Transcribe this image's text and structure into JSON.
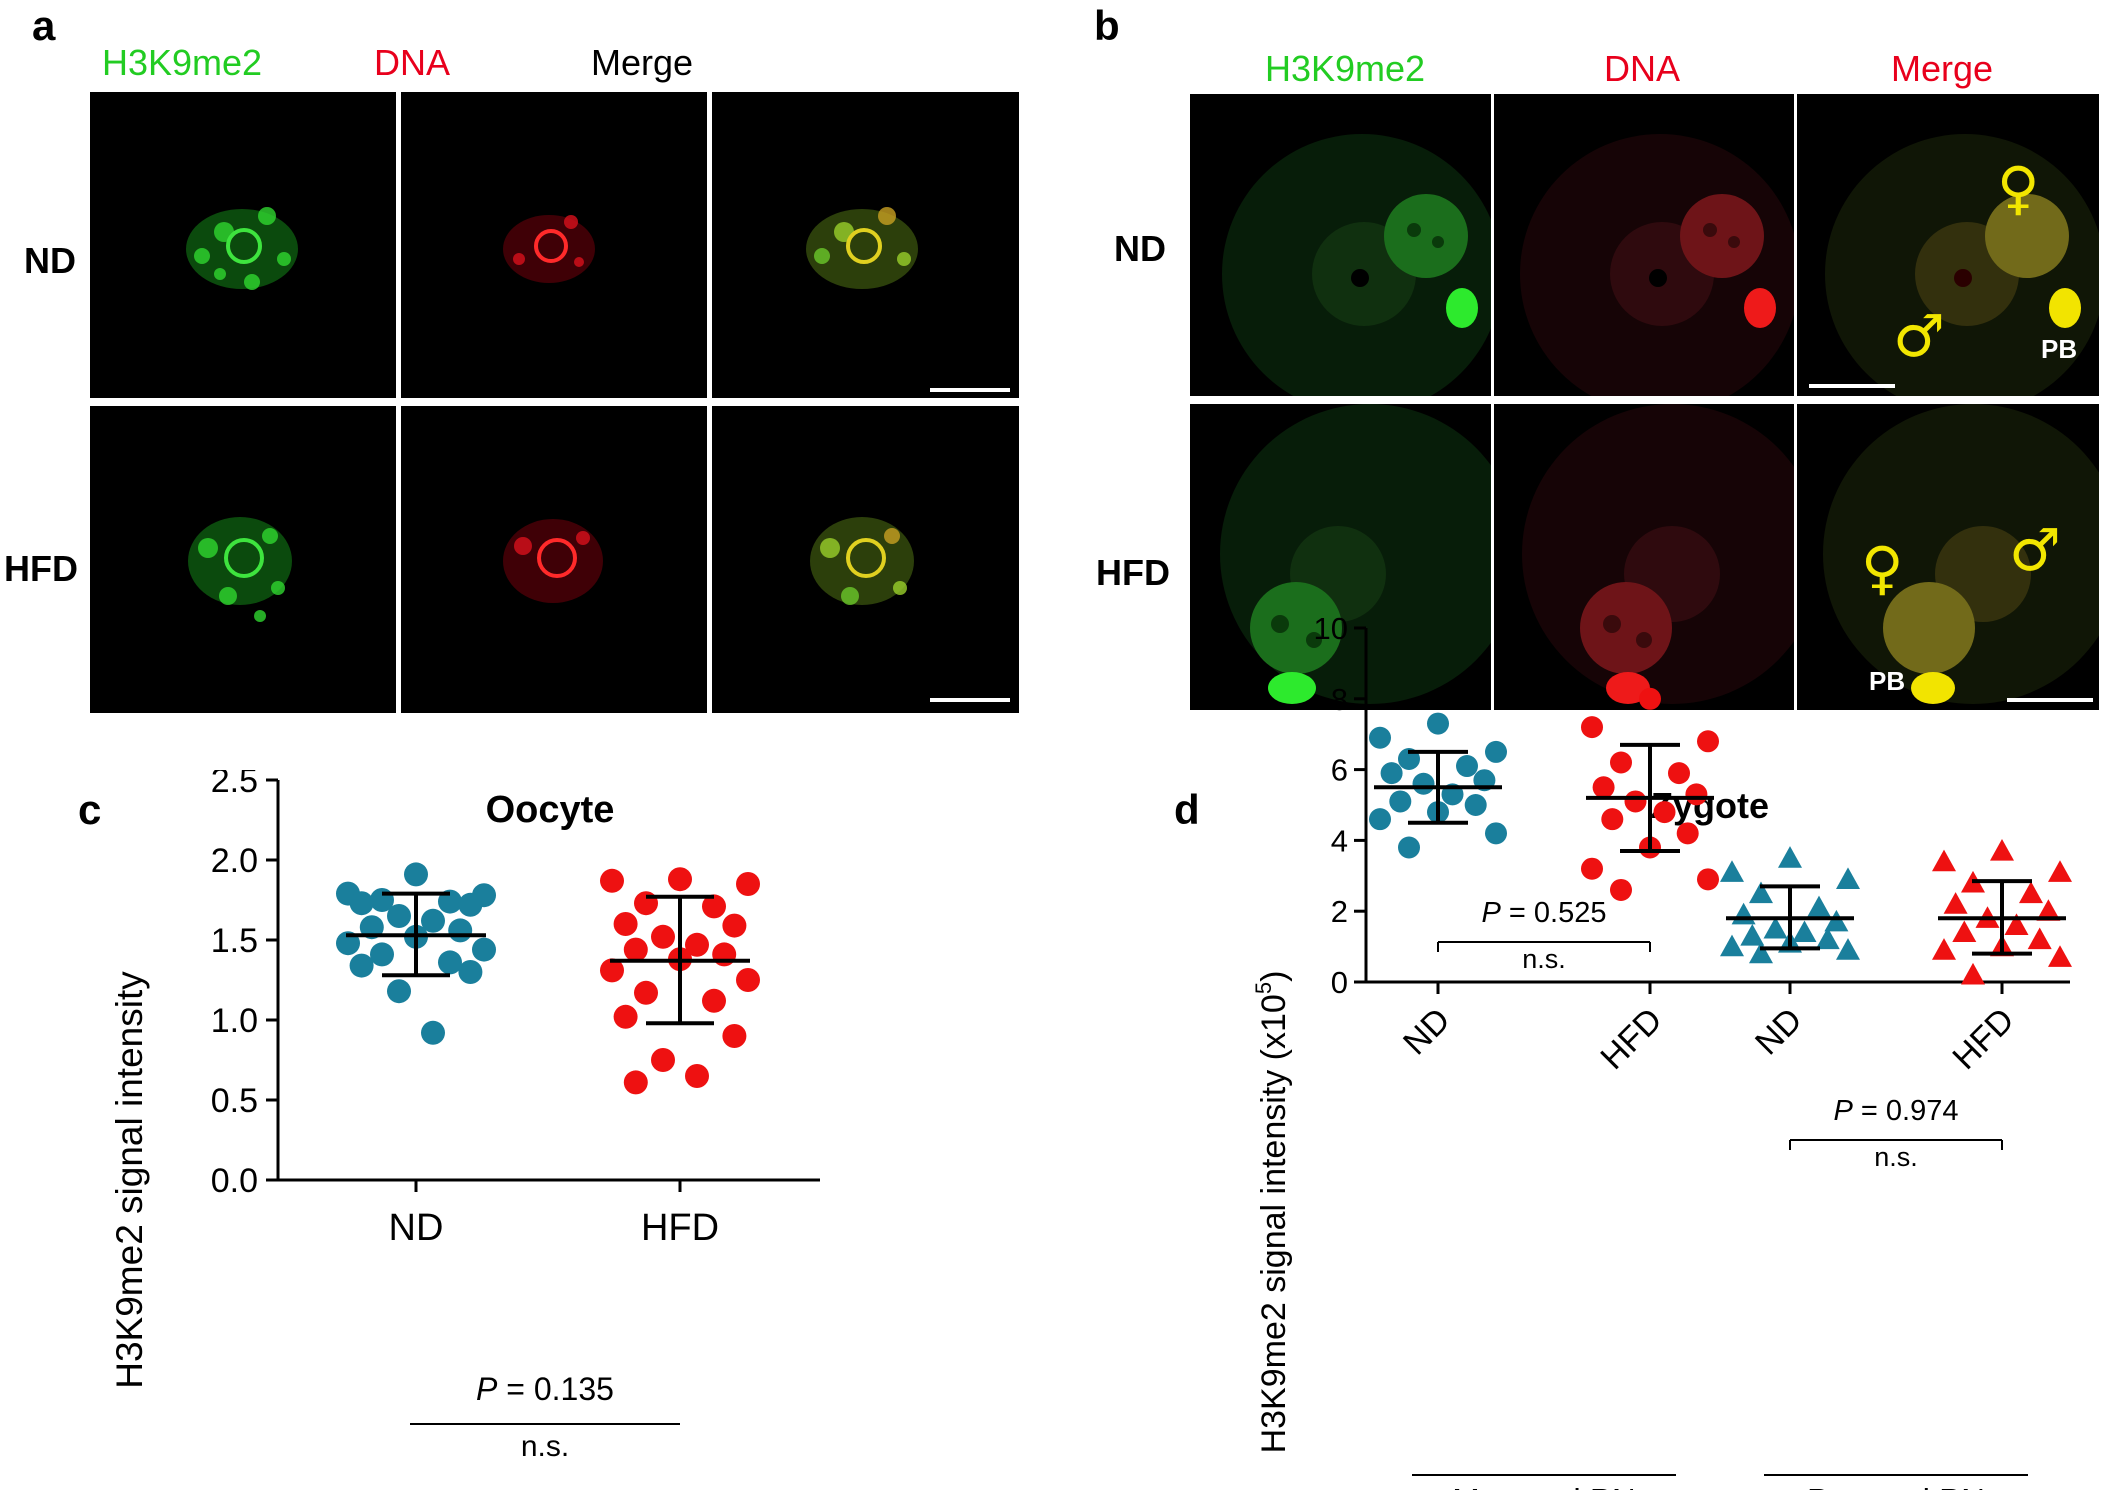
{
  "panel_a": {
    "letter": "a",
    "columns": [
      "H3K9me2",
      "DNA",
      "Merge"
    ],
    "rows": [
      "ND",
      "HFD"
    ]
  },
  "panel_b": {
    "letter": "b",
    "columns": [
      "H3K9me2",
      "DNA",
      "Merge"
    ],
    "rows": [
      "ND",
      "HFD"
    ],
    "labels": {
      "pb": "PB",
      "female": "♀",
      "male": "♂"
    }
  },
  "colors": {
    "green": "#22cc22",
    "red": "#e8001c",
    "teal": "#1a7f9c",
    "scatter_red": "#ee1111"
  },
  "chart_data": [
    {
      "panel": "c",
      "type": "scatter",
      "title": "Oocyte",
      "ylabel": "H3K9me2 signal intensity",
      "xlabel": "",
      "categories": [
        "ND",
        "HFD"
      ],
      "ylim": [
        0.0,
        2.5
      ],
      "yticks": [
        "0.0",
        "0.5",
        "1.0",
        "1.5",
        "2.0",
        "2.5"
      ],
      "annotation": {
        "p_label": "P",
        "p_value": " = 0.135",
        "ns": "n.s."
      },
      "series": [
        {
          "name": "ND",
          "color": "#1a7f9c",
          "mean": 1.53,
          "sd_low": 1.28,
          "sd_high": 1.79,
          "values": [
            1.91,
            1.79,
            1.78,
            1.75,
            1.74,
            1.73,
            1.72,
            1.65,
            1.62,
            1.58,
            1.56,
            1.52,
            1.48,
            1.44,
            1.41,
            1.36,
            1.34,
            1.3,
            1.18,
            0.92
          ]
        },
        {
          "name": "HFD",
          "color": "#ee1111",
          "mean": 1.37,
          "sd_low": 0.98,
          "sd_high": 1.77,
          "values": [
            1.88,
            1.87,
            1.85,
            1.73,
            1.71,
            1.6,
            1.59,
            1.52,
            1.47,
            1.44,
            1.41,
            1.38,
            1.31,
            1.25,
            1.17,
            1.12,
            1.02,
            0.9,
            0.75,
            0.65,
            0.61
          ]
        }
      ]
    },
    {
      "panel": "d",
      "type": "scatter",
      "title": "Zygote",
      "ylabel": "H3K9me2 signal intensity (x10",
      "ylabel_sup": "5",
      "ylabel_end": ")",
      "categories": [
        "ND",
        "HFD",
        "ND",
        "HFD"
      ],
      "groups": [
        "Maternal PN",
        "Paternal PN"
      ],
      "ylim": [
        0,
        10
      ],
      "yticks": [
        "0",
        "2",
        "4",
        "6",
        "8",
        "10"
      ],
      "annotations": [
        {
          "p_label": "P",
          "p_value": " = 0.525",
          "ns": "n.s."
        },
        {
          "p_label": "P",
          "p_value": " = 0.974",
          "ns": "n.s."
        }
      ],
      "series": [
        {
          "name": "Maternal ND",
          "marker": "circle",
          "color": "#1a7f9c",
          "mean": 5.5,
          "sd_low": 4.5,
          "sd_high": 6.5,
          "values": [
            7.3,
            6.9,
            6.5,
            6.3,
            6.1,
            5.9,
            5.7,
            5.6,
            5.3,
            5.1,
            5.0,
            4.8,
            4.6,
            4.2,
            3.8
          ]
        },
        {
          "name": "Maternal HFD",
          "marker": "circle",
          "color": "#ee1111",
          "mean": 5.2,
          "sd_low": 3.7,
          "sd_high": 6.7,
          "values": [
            8.0,
            7.2,
            6.8,
            6.2,
            5.9,
            5.5,
            5.3,
            5.1,
            4.8,
            4.6,
            4.2,
            3.8,
            3.2,
            2.9,
            2.6
          ]
        },
        {
          "name": "Paternal ND",
          "marker": "triangle",
          "color": "#1a7f9c",
          "mean": 1.8,
          "sd_low": 0.95,
          "sd_high": 2.7,
          "values": [
            3.5,
            3.1,
            2.9,
            2.5,
            2.1,
            1.9,
            1.7,
            1.5,
            1.4,
            1.3,
            1.2,
            1.1,
            1.0,
            0.9,
            0.8
          ]
        },
        {
          "name": "Paternal HFD",
          "marker": "triangle",
          "color": "#ee1111",
          "mean": 1.8,
          "sd_low": 0.8,
          "sd_high": 2.85,
          "values": [
            3.7,
            3.4,
            3.1,
            2.8,
            2.5,
            2.2,
            2.0,
            1.8,
            1.6,
            1.4,
            1.2,
            1.0,
            0.9,
            0.7,
            0.2
          ]
        }
      ]
    }
  ]
}
